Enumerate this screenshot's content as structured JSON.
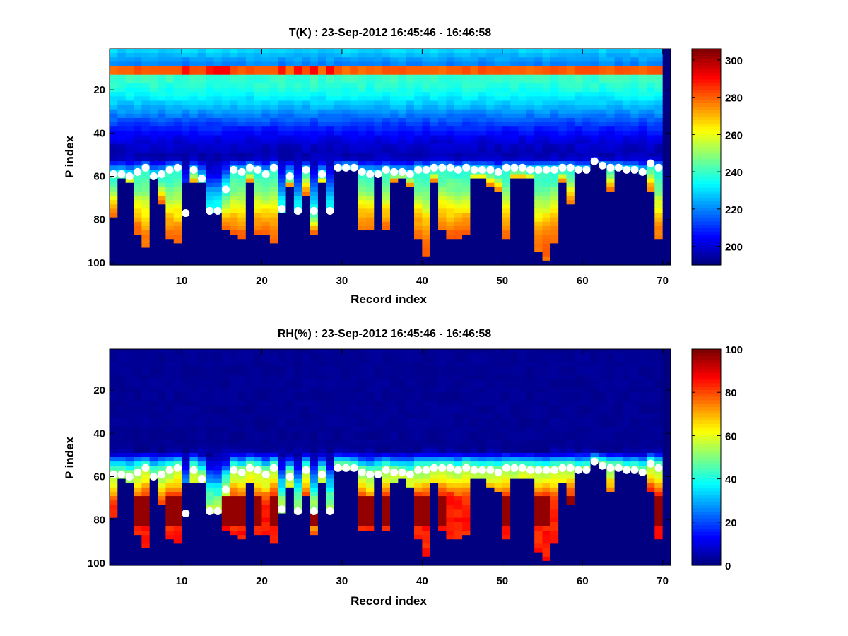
{
  "chart_data": [
    {
      "type": "heatmap",
      "title": "T(K) : 23-Sep-2012 16:45:46 - 16:46:58",
      "xlabel": "Record index",
      "ylabel": "P index",
      "xlim": [
        1,
        71
      ],
      "ylim": [
        1,
        101
      ],
      "x_ticks": [
        10,
        20,
        30,
        40,
        50,
        60,
        70
      ],
      "y_ticks": [
        20,
        40,
        60,
        80,
        100
      ],
      "colorbar": {
        "min": 190,
        "max": 306,
        "ticks": [
          200,
          220,
          240,
          260,
          280,
          300
        ]
      },
      "colormap": "jet",
      "surface_markers": [
        59,
        59,
        60,
        58,
        56,
        60,
        59,
        57,
        56,
        77,
        57,
        61,
        76,
        76,
        66,
        57,
        58,
        56,
        57,
        59,
        56,
        75,
        60,
        76,
        57,
        76,
        59,
        76,
        56,
        56,
        56,
        58,
        59,
        59,
        57,
        58,
        58,
        59,
        57,
        57,
        56,
        56,
        56,
        57,
        56,
        57,
        57,
        57,
        58,
        56,
        56,
        56,
        57,
        57,
        57,
        57,
        56,
        56,
        57,
        57,
        53,
        55,
        56,
        56,
        57,
        57,
        58,
        54,
        56
      ],
      "low_data_start": [
        79,
        61,
        62,
        86,
        92,
        61,
        73,
        89,
        91,
        62,
        63,
        62,
        77,
        77,
        85,
        87,
        88,
        63,
        87,
        87,
        90,
        77,
        64,
        77,
        68,
        86,
        63,
        77,
        0,
        0,
        0,
        85,
        85,
        0,
        85,
        62,
        61,
        64,
        88,
        96,
        62,
        85,
        89,
        88,
        87,
        61,
        61,
        64,
        67,
        88,
        61,
        61,
        61,
        94,
        98,
        90,
        62,
        73,
        0,
        0,
        0,
        0,
        67,
        0,
        0,
        0,
        0,
        67,
        89
      ],
      "series_values": {
        "top_value": 230,
        "upper_band_value": 284,
        "upper_band_p": [
          8,
          12
        ],
        "hot_spot_records": [
          10,
          13,
          14,
          15,
          22,
          24,
          26,
          28
        ],
        "blue_minimum_value": 196,
        "blue_minimum_p": [
          30,
          50
        ],
        "near_surface_value": 235,
        "bottom_value": 280,
        "no_data_value": 190
      }
    },
    {
      "type": "heatmap",
      "title": "RH(%) : 23-Sep-2012 16:45:46 - 16:46:58",
      "xlabel": "Record index",
      "ylabel": "P index",
      "xlim": [
        1,
        71
      ],
      "ylim": [
        1,
        101
      ],
      "x_ticks": [
        10,
        20,
        30,
        40,
        50,
        60,
        70
      ],
      "y_ticks": [
        20,
        40,
        60,
        80,
        100
      ],
      "colorbar": {
        "min": 0,
        "max": 100,
        "ticks": [
          0,
          20,
          40,
          60,
          80,
          100
        ]
      },
      "colormap": "jet",
      "surface_markers": [
        59,
        59,
        60,
        58,
        56,
        60,
        59,
        57,
        56,
        77,
        57,
        61,
        76,
        76,
        66,
        57,
        58,
        56,
        57,
        59,
        56,
        75,
        60,
        76,
        57,
        76,
        59,
        76,
        56,
        56,
        56,
        58,
        59,
        59,
        57,
        58,
        58,
        59,
        57,
        57,
        56,
        56,
        56,
        57,
        56,
        57,
        57,
        57,
        58,
        56,
        56,
        56,
        57,
        57,
        57,
        57,
        56,
        56,
        57,
        57,
        53,
        55,
        56,
        56,
        57,
        57,
        58,
        54,
        56
      ],
      "low_data_start": [
        79,
        61,
        62,
        86,
        92,
        61,
        73,
        89,
        91,
        62,
        63,
        62,
        77,
        77,
        85,
        87,
        88,
        63,
        87,
        87,
        90,
        77,
        64,
        77,
        68,
        86,
        63,
        77,
        0,
        0,
        0,
        85,
        85,
        0,
        85,
        62,
        61,
        64,
        88,
        96,
        62,
        85,
        89,
        88,
        87,
        61,
        61,
        64,
        67,
        88,
        61,
        61,
        61,
        94,
        98,
        90,
        62,
        73,
        0,
        0,
        0,
        0,
        67,
        0,
        0,
        0,
        0,
        67,
        89
      ],
      "series_values": {
        "dry_aloft_value": 2,
        "moist_onset_p": [
          46,
          56
        ],
        "surface_value": 55,
        "saturated_value": 98,
        "saturated_p": [
          68,
          82
        ],
        "no_data_value": 0
      }
    }
  ]
}
